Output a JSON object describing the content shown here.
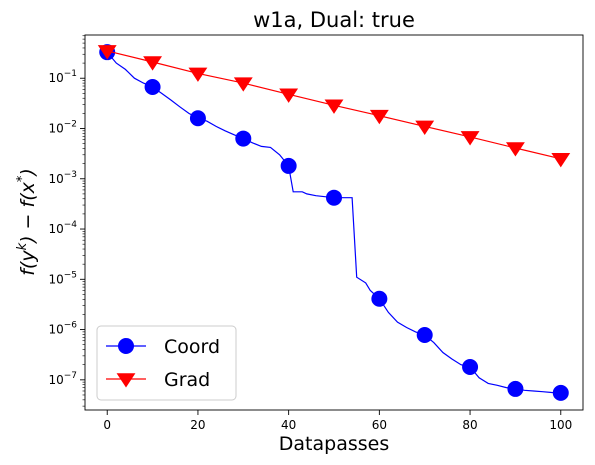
{
  "chart_data": {
    "type": "line",
    "title": "w1a, Dual: true",
    "xlabel": "Datapasses",
    "ylabel": "f(yᵏ) − f(x*)",
    "ylabel_parts": [
      "f(y",
      "k",
      ") − f(x",
      "*",
      ")"
    ],
    "xlim": [
      -4.9,
      104.9
    ],
    "ylim_log10": [
      -7.6,
      -0.14
    ],
    "yscale": "log",
    "grid": false,
    "legend_position": "lower-left",
    "x_ticks": [
      0,
      20,
      40,
      60,
      80,
      100
    ],
    "x_tick_labels": [
      "0",
      "20",
      "40",
      "60",
      "80",
      "100"
    ],
    "y_ticks_exp": [
      -1,
      -2,
      -3,
      -4,
      -5,
      -6,
      -7
    ],
    "y_tick_labels": [
      {
        "base": "10",
        "exp": "−1"
      },
      {
        "base": "10",
        "exp": "−2"
      },
      {
        "base": "10",
        "exp": "−3"
      },
      {
        "base": "10",
        "exp": "−4"
      },
      {
        "base": "10",
        "exp": "−5"
      },
      {
        "base": "10",
        "exp": "−6"
      },
      {
        "base": "10",
        "exp": "−7"
      }
    ],
    "series": [
      {
        "name": "Coord",
        "color": "#0000ff",
        "marker": "circle",
        "markers": [
          [
            0,
            0.33
          ],
          [
            10,
            0.067
          ],
          [
            20,
            0.016
          ],
          [
            30,
            0.0063
          ],
          [
            40,
            0.0018
          ],
          [
            50,
            0.00042
          ],
          [
            60,
            4.1e-06
          ],
          [
            70,
            7.8e-07
          ],
          [
            80,
            1.8e-07
          ],
          [
            90,
            6.6e-08
          ],
          [
            100,
            5.5e-08
          ]
        ],
        "curve": [
          [
            0,
            0.33
          ],
          [
            2,
            0.2
          ],
          [
            4,
            0.15
          ],
          [
            6,
            0.1
          ],
          [
            8,
            0.08
          ],
          [
            10,
            0.067
          ],
          [
            12,
            0.05
          ],
          [
            14,
            0.037
          ],
          [
            16,
            0.027
          ],
          [
            18,
            0.02
          ],
          [
            20,
            0.016
          ],
          [
            22,
            0.014
          ],
          [
            24,
            0.011
          ],
          [
            26,
            0.009
          ],
          [
            28,
            0.0075
          ],
          [
            30,
            0.0063
          ],
          [
            32,
            0.0052
          ],
          [
            34,
            0.0044
          ],
          [
            36,
            0.0042
          ],
          [
            38,
            0.003
          ],
          [
            40,
            0.0018
          ],
          [
            41,
            0.00055
          ],
          [
            43,
            0.00055
          ],
          [
            44,
            0.0005
          ],
          [
            46,
            0.00046
          ],
          [
            48,
            0.00044
          ],
          [
            50,
            0.00042
          ],
          [
            52,
            0.00042
          ],
          [
            54,
            0.00042
          ],
          [
            55,
            1.1e-05
          ],
          [
            57,
            8.5e-06
          ],
          [
            58,
            6e-06
          ],
          [
            60,
            4.1e-06
          ],
          [
            62,
            2.2e-06
          ],
          [
            64,
            1.4e-06
          ],
          [
            66,
            1.1e-06
          ],
          [
            68,
            9e-07
          ],
          [
            70,
            7.8e-07
          ],
          [
            72,
            5.5e-07
          ],
          [
            74,
            3.5e-07
          ],
          [
            76,
            2.6e-07
          ],
          [
            78,
            2e-07
          ],
          [
            80,
            1.8e-07
          ],
          [
            82,
            1.1e-07
          ],
          [
            84,
            8.5e-08
          ],
          [
            86,
            7.8e-08
          ],
          [
            88,
            7e-08
          ],
          [
            90,
            6.6e-08
          ],
          [
            92,
            6.2e-08
          ],
          [
            94,
            6e-08
          ],
          [
            96,
            5.8e-08
          ],
          [
            98,
            5.6e-08
          ],
          [
            100,
            5.5e-08
          ]
        ]
      },
      {
        "name": "Grad",
        "color": "#ff0000",
        "marker": "triangle-down",
        "markers": [
          [
            0,
            0.35
          ],
          [
            10,
            0.21
          ],
          [
            20,
            0.125
          ],
          [
            30,
            0.08
          ],
          [
            40,
            0.048
          ],
          [
            50,
            0.029
          ],
          [
            60,
            0.018
          ],
          [
            70,
            0.011
          ],
          [
            80,
            0.0068
          ],
          [
            90,
            0.0041
          ],
          [
            100,
            0.0025
          ]
        ],
        "curve": [
          [
            0,
            0.35
          ],
          [
            10,
            0.21
          ],
          [
            20,
            0.125
          ],
          [
            30,
            0.08
          ],
          [
            40,
            0.048
          ],
          [
            50,
            0.029
          ],
          [
            60,
            0.018
          ],
          [
            70,
            0.011
          ],
          [
            80,
            0.0068
          ],
          [
            90,
            0.0041
          ],
          [
            100,
            0.0025
          ]
        ]
      }
    ]
  }
}
